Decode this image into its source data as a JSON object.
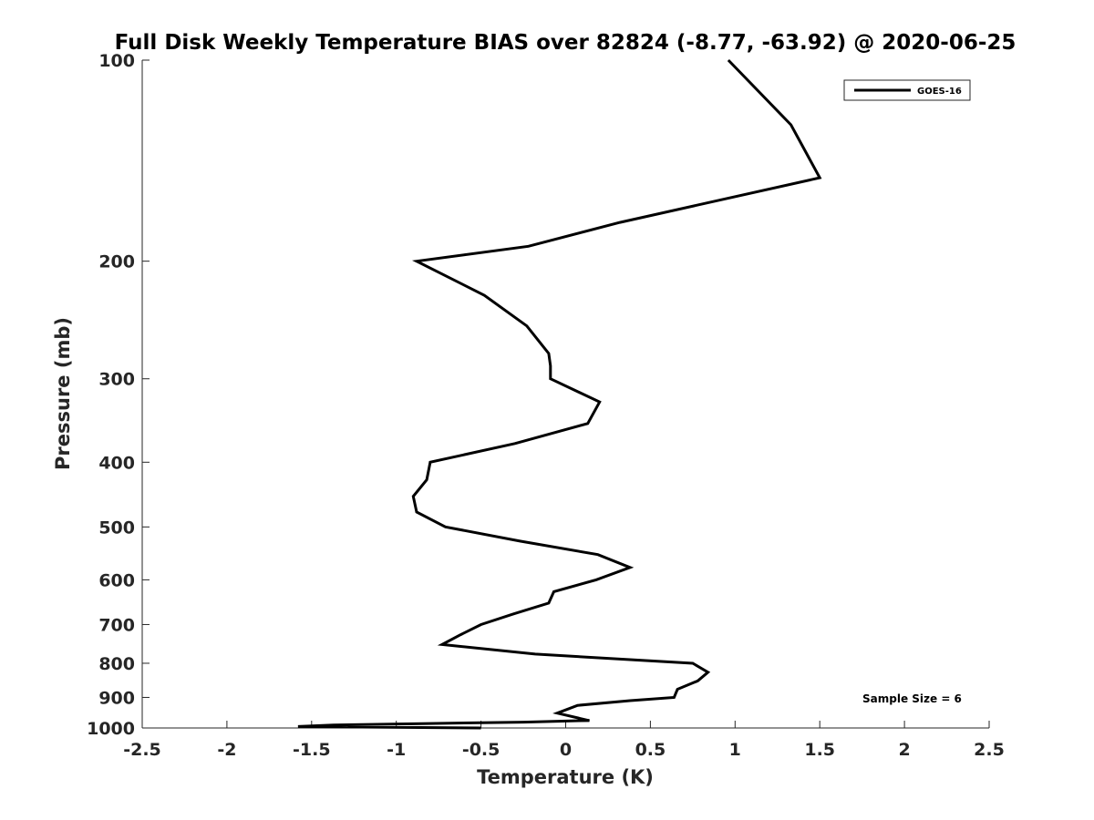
{
  "chart_data": {
    "type": "line",
    "title": "Full Disk Weekly Temperature BIAS over 82824 (-8.77, -63.92) @ 2020-06-25",
    "xlabel": "Temperature (K)",
    "ylabel": "Pressure (mb)",
    "xlim": [
      -2.5,
      2.5
    ],
    "ylim": [
      1000,
      100
    ],
    "y_scale": "log",
    "y_direction": "reversed",
    "grid": false,
    "legend_position": "top-right",
    "x_ticks": [
      -2.5,
      -2,
      -1.5,
      -1,
      -0.5,
      0,
      0.5,
      1,
      1.5,
      2,
      2.5
    ],
    "x_tick_labels": [
      "-2.5",
      "-2",
      "-1.5",
      "-1",
      "-0.5",
      "0",
      "0.5",
      "1",
      "1.5",
      "2",
      "2.5"
    ],
    "y_ticks": [
      100,
      200,
      300,
      400,
      500,
      600,
      700,
      800,
      900,
      1000
    ],
    "y_tick_labels": [
      "100",
      "200",
      "300",
      "400",
      "500",
      "600",
      "700",
      "800",
      "900",
      "1000"
    ],
    "series": [
      {
        "name": "GOES-16",
        "color": "#000000",
        "points": [
          {
            "x": 0.96,
            "y": 100
          },
          {
            "x": 1.33,
            "y": 125
          },
          {
            "x": 1.5,
            "y": 150
          },
          {
            "x": 0.32,
            "y": 175
          },
          {
            "x": -0.22,
            "y": 190
          },
          {
            "x": -0.88,
            "y": 200
          },
          {
            "x": -0.48,
            "y": 225
          },
          {
            "x": -0.23,
            "y": 250
          },
          {
            "x": -0.1,
            "y": 275
          },
          {
            "x": -0.09,
            "y": 287
          },
          {
            "x": -0.09,
            "y": 300
          },
          {
            "x": 0.2,
            "y": 325
          },
          {
            "x": 0.13,
            "y": 350
          },
          {
            "x": -0.3,
            "y": 375
          },
          {
            "x": -0.8,
            "y": 400
          },
          {
            "x": -0.82,
            "y": 425
          },
          {
            "x": -0.9,
            "y": 450
          },
          {
            "x": -0.88,
            "y": 475
          },
          {
            "x": -0.71,
            "y": 500
          },
          {
            "x": -0.27,
            "y": 525
          },
          {
            "x": 0.19,
            "y": 550
          },
          {
            "x": 0.38,
            "y": 575
          },
          {
            "x": 0.18,
            "y": 600
          },
          {
            "x": -0.07,
            "y": 625
          },
          {
            "x": -0.1,
            "y": 650
          },
          {
            "x": -0.31,
            "y": 675
          },
          {
            "x": -0.5,
            "y": 700
          },
          {
            "x": -0.62,
            "y": 725
          },
          {
            "x": -0.73,
            "y": 750
          },
          {
            "x": -0.18,
            "y": 775
          },
          {
            "x": 0.75,
            "y": 800
          },
          {
            "x": 0.84,
            "y": 825
          },
          {
            "x": 0.78,
            "y": 850
          },
          {
            "x": 0.66,
            "y": 875
          },
          {
            "x": 0.64,
            "y": 900
          },
          {
            "x": 0.38,
            "y": 910
          },
          {
            "x": 0.07,
            "y": 925
          },
          {
            "x": -0.05,
            "y": 950
          },
          {
            "x": 0.14,
            "y": 975
          },
          {
            "x": 0.08,
            "y": 1000
          },
          {
            "x": -0.25,
            "y": 1000
          },
          {
            "x": -0.85,
            "y": 1000
          },
          {
            "x": -1.37,
            "y": 1000
          },
          {
            "x": -1.58,
            "y": 1000
          },
          {
            "x": -0.5,
            "y": 1000
          }
        ]
      }
    ],
    "annotations": [
      {
        "text": "Sample Size = 6",
        "position": "bottom-right"
      }
    ]
  }
}
